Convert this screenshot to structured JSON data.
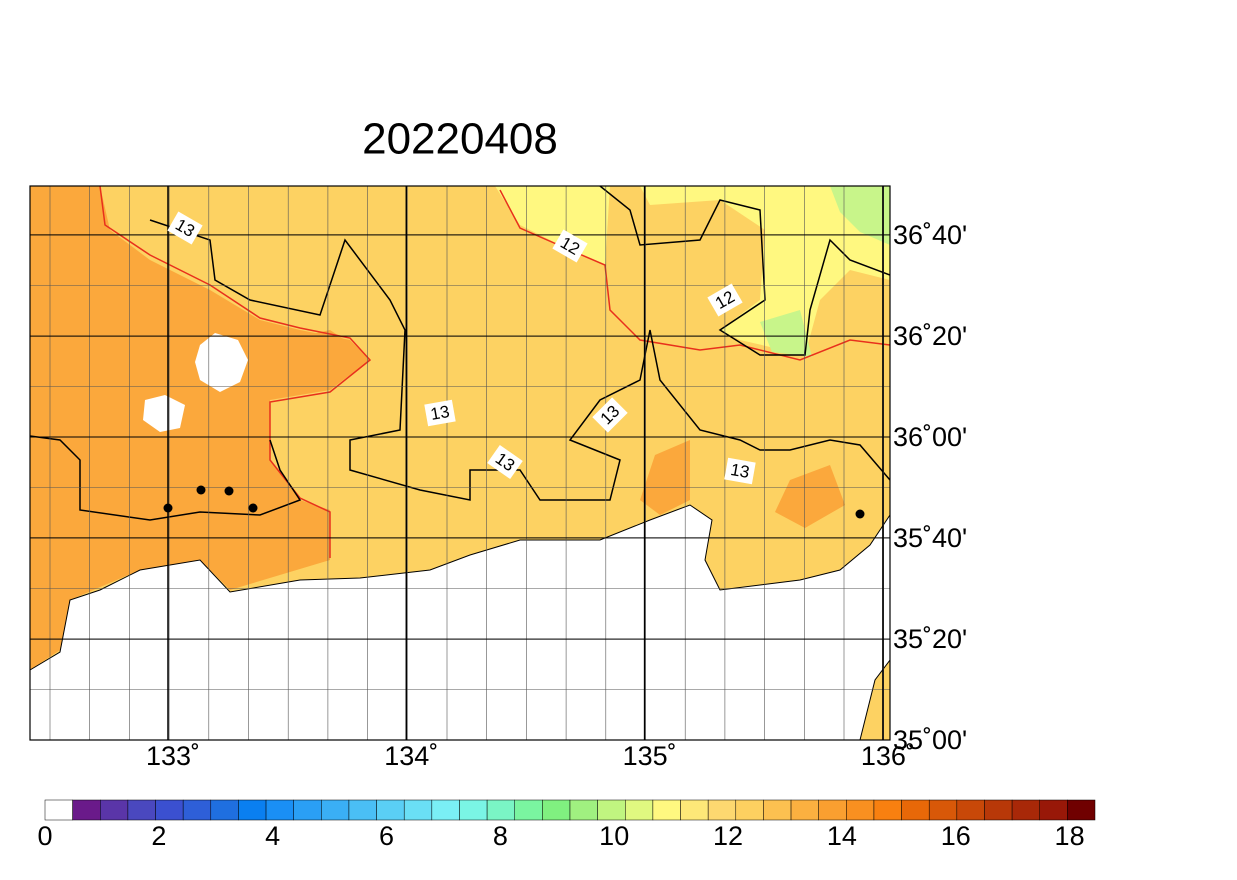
{
  "title": "20220408",
  "map": {
    "lon_labels": [
      {
        "value": 133,
        "label": "133˚"
      },
      {
        "value": 134,
        "label": "134˚"
      },
      {
        "value": 135,
        "label": "135˚"
      },
      {
        "value": 136,
        "label": "136˚"
      }
    ],
    "lat_labels": [
      {
        "value": 36.667,
        "label": "36˚40'"
      },
      {
        "value": 36.333,
        "label": "36˚20'"
      },
      {
        "value": 36.0,
        "label": "36˚00'"
      },
      {
        "value": 35.667,
        "label": "35˚40'"
      },
      {
        "value": 35.333,
        "label": "35˚20'"
      },
      {
        "value": 35.0,
        "label": "35˚00'"
      }
    ],
    "contour_labels": [
      "13",
      "12",
      "12",
      "13",
      "13",
      "13",
      "13"
    ]
  },
  "colorbar": {
    "colors": [
      "#ffffff",
      "#6a1a8a",
      "#5a35a8",
      "#4a48bf",
      "#3b50d0",
      "#2e5fd8",
      "#1f6fe0",
      "#0a7ff0",
      "#1a8ff5",
      "#2a9ff5",
      "#3aaff5",
      "#4abff5",
      "#5acff5",
      "#6adff5",
      "#7aeff5",
      "#7af5e5",
      "#7af5c5",
      "#7af5a0",
      "#80f080",
      "#a0f080",
      "#c0f580",
      "#e0f880",
      "#fff880",
      "#fde878",
      "#fdd870",
      "#fdd060",
      "#fcc050",
      "#fbb040",
      "#fa9f30",
      "#f99020",
      "#f88010",
      "#e86808",
      "#d85808",
      "#c84808",
      "#b83808",
      "#a82808",
      "#981808",
      "#700000"
    ],
    "ticks": [
      0,
      2,
      4,
      6,
      8,
      10,
      12,
      14,
      16,
      18
    ]
  }
}
